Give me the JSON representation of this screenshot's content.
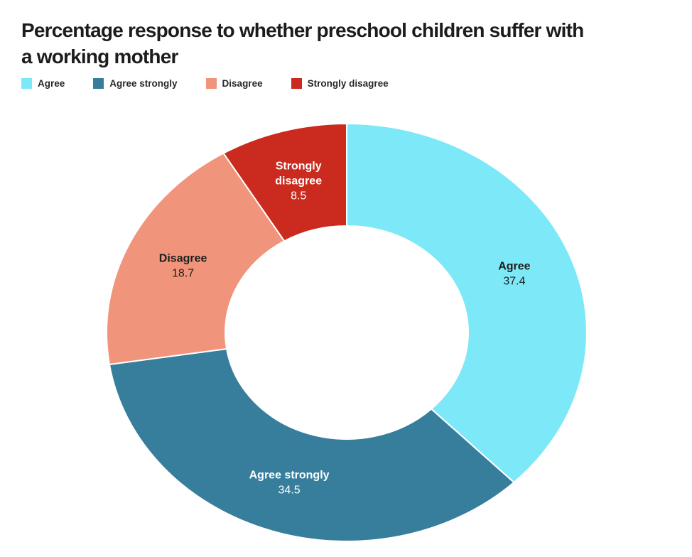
{
  "title": "Percentage response to whether preschool children suffer with a working mother",
  "legend": {
    "items": [
      {
        "label": "Agree",
        "color": "#7DE8F7"
      },
      {
        "label": "Agree strongly",
        "color": "#377E9C"
      },
      {
        "label": "Disagree",
        "color": "#F0947B"
      },
      {
        "label": "Strongly disagree",
        "color": "#CB2A1E"
      }
    ]
  },
  "chart_data": {
    "type": "pie",
    "subtype": "donut",
    "title": "Percentage response to whether preschool children suffer with a working mother",
    "categories": [
      "Agree",
      "Agree strongly",
      "Disagree",
      "Strongly disagree"
    ],
    "values": [
      37.4,
      34.5,
      18.7,
      8.5
    ],
    "colors": [
      "#7DE8F7",
      "#377E9C",
      "#F0947B",
      "#CB2A1E"
    ],
    "label_colors": [
      "#1d1d1d",
      "#ffffff",
      "#1d1d1d",
      "#ffffff"
    ],
    "units": "percent",
    "start_angle_deg": 0,
    "direction": "clockwise",
    "inner_radius_ratio": 0.51,
    "legend_position": "top",
    "slice_labels_shown": true,
    "background_color": "#ffffff",
    "separator_color": "#ffffff"
  }
}
